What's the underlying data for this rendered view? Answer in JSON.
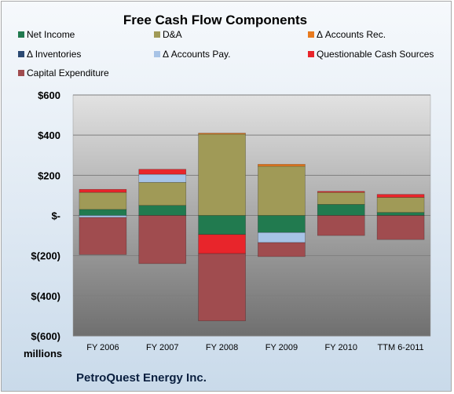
{
  "chart_data": {
    "type": "bar",
    "stacked": true,
    "title": "Free Cash Flow Components",
    "unit_label": "millions",
    "company": "PetroQuest Energy Inc.",
    "categories": [
      "FY 2006",
      "FY 2007",
      "FY 2008",
      "FY 2009",
      "FY 2010",
      "TTM 6-2011"
    ],
    "ylim": [
      -600,
      600
    ],
    "yticks": [
      600,
      400,
      200,
      0,
      -200,
      -400,
      -600
    ],
    "ytick_labels": [
      "$600",
      "$400",
      "$200",
      "$-",
      "$(200)",
      "$(400)",
      "$(600)"
    ],
    "grid": true,
    "legend_position": "top",
    "series": [
      {
        "name": "Net Income",
        "color": "#217a4f",
        "values": [
          30,
          50,
          -95,
          -85,
          55,
          15
        ]
      },
      {
        "name": "D&A",
        "color": "#a09a57",
        "values": [
          85,
          115,
          405,
          245,
          60,
          75
        ]
      },
      {
        "name": "Δ Accounts Rec.",
        "color": "#e87a1e",
        "values": [
          0,
          0,
          5,
          10,
          0,
          0
        ]
      },
      {
        "name": "Δ Inventories",
        "color": "#2c4a73",
        "values": [
          0,
          0,
          0,
          0,
          0,
          0
        ]
      },
      {
        "name": "Δ Accounts Pay.",
        "color": "#a7c3e6",
        "values": [
          -10,
          40,
          0,
          -50,
          0,
          0
        ]
      },
      {
        "name": "Questionable Cash Sources",
        "color": "#e8252b",
        "values": [
          15,
          25,
          -95,
          0,
          5,
          15
        ]
      },
      {
        "name": "Capital Expenditure",
        "color": "#a04c4f",
        "values": [
          -185,
          -240,
          -335,
          -70,
          -100,
          -120
        ]
      }
    ]
  }
}
